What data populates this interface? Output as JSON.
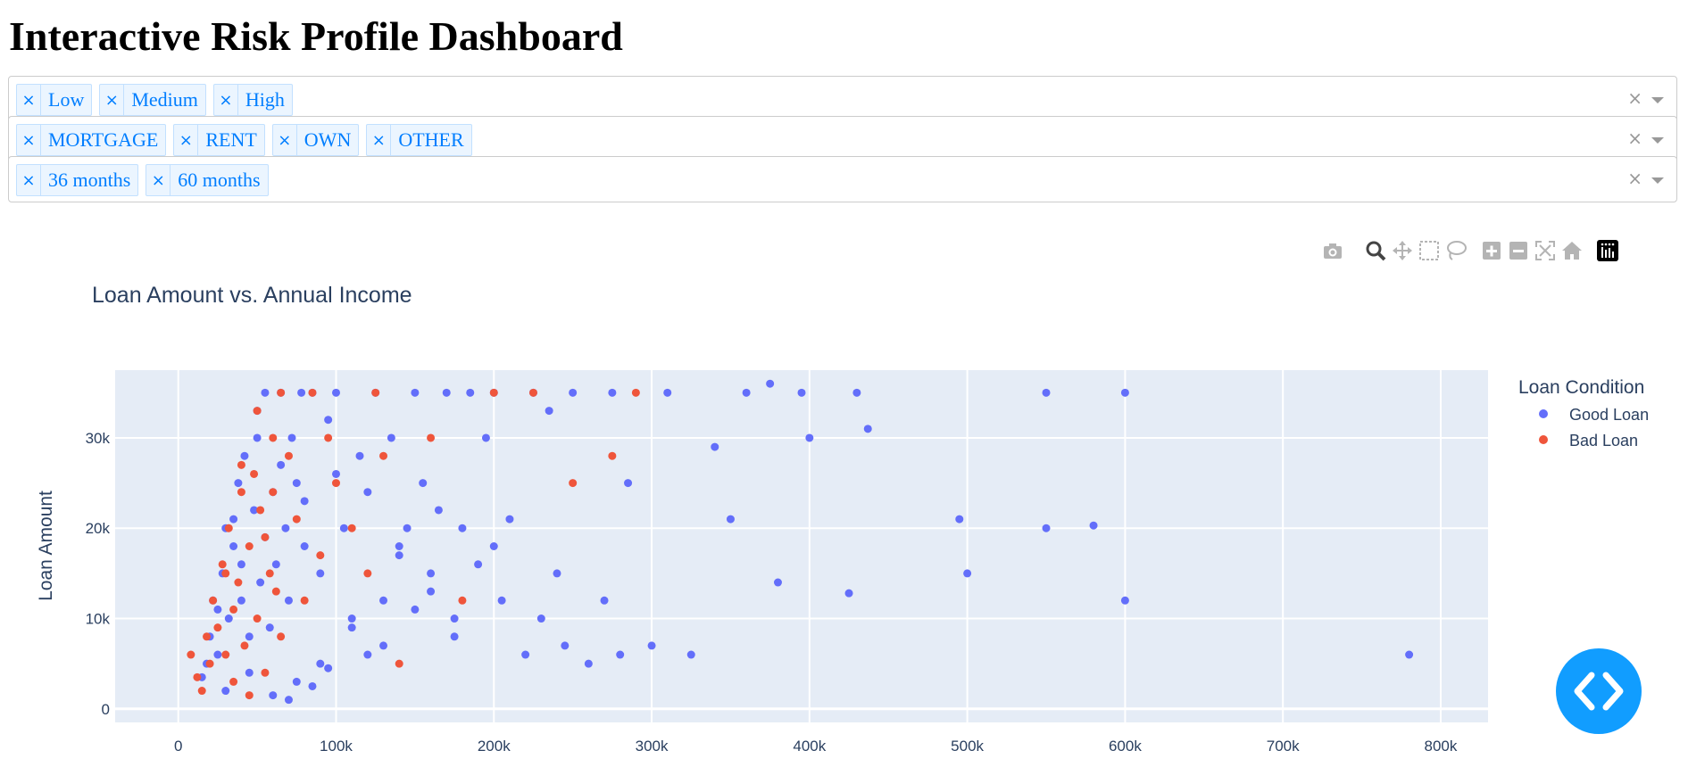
{
  "page": {
    "title": "Interactive Risk Profile Dashboard"
  },
  "filters": [
    {
      "tags": [
        "Low",
        "Medium",
        "High"
      ],
      "clear_symbol": "×"
    },
    {
      "tags": [
        "MORTGAGE",
        "RENT",
        "OWN",
        "OTHER"
      ],
      "clear_symbol": "×"
    },
    {
      "tags": [
        "36 months",
        "60 months"
      ],
      "clear_symbol": "×"
    }
  ],
  "modebar": [
    "camera-icon",
    "zoom-icon",
    "pan-icon",
    "box-select-icon",
    "lasso-select-icon",
    "zoom-in-icon",
    "zoom-out-icon",
    "autoscale-icon",
    "reset-axes-icon",
    "plotly-logo-icon"
  ],
  "colors": {
    "good": "#636efa",
    "bad": "#ef553b",
    "plot_bg": "#e5ecf6",
    "accent": "#119dff",
    "tag_text": "#007eff"
  },
  "chart_data": {
    "type": "scatter",
    "title": "Loan Amount vs. Annual Income",
    "xlabel": "",
    "ylabel": "Loan Amount",
    "xlim": [
      -40000,
      830000
    ],
    "ylim": [
      -1500,
      37500
    ],
    "xticks": [
      0,
      100000,
      200000,
      300000,
      400000,
      500000,
      600000,
      700000,
      800000
    ],
    "xtick_labels": [
      "0",
      "100k",
      "200k",
      "300k",
      "400k",
      "500k",
      "600k",
      "700k",
      "800k"
    ],
    "yticks": [
      0,
      10000,
      20000,
      30000
    ],
    "ytick_labels": [
      "0",
      "10k",
      "20k",
      "30k"
    ],
    "grid": true,
    "legend_title": "Loan Condition",
    "legend_position": "top-right",
    "series": [
      {
        "name": "Good Loan",
        "color": "#636efa",
        "x": [
          15000,
          18000,
          20000,
          22000,
          25000,
          28000,
          30000,
          32000,
          35000,
          38000,
          40000,
          42000,
          45000,
          48000,
          50000,
          52000,
          55000,
          58000,
          60000,
          62000,
          65000,
          68000,
          70000,
          72000,
          75000,
          78000,
          80000,
          85000,
          90000,
          95000,
          100000,
          105000,
          110000,
          115000,
          120000,
          125000,
          130000,
          135000,
          140000,
          145000,
          150000,
          155000,
          160000,
          165000,
          170000,
          175000,
          180000,
          185000,
          190000,
          195000,
          200000,
          205000,
          210000,
          220000,
          225000,
          230000,
          235000,
          240000,
          245000,
          250000,
          260000,
          270000,
          275000,
          280000,
          285000,
          300000,
          310000,
          325000,
          340000,
          350000,
          360000,
          375000,
          380000,
          395000,
          400000,
          425000,
          430000,
          437000,
          495000,
          500000,
          550000,
          550000,
          580000,
          600000,
          600000,
          780000,
          30000,
          45000,
          60000,
          75000,
          90000,
          110000,
          130000,
          150000,
          175000,
          200000,
          70000,
          85000,
          95000,
          120000,
          65000,
          80000,
          100000,
          140000,
          160000,
          55000,
          40000,
          35000,
          25000,
          50000
        ],
        "y": [
          3500,
          5000,
          8000,
          12000,
          6000,
          15000,
          20000,
          10000,
          18000,
          25000,
          12000,
          28000,
          8000,
          22000,
          30000,
          14000,
          35000,
          9000,
          24000,
          16000,
          35000,
          20000,
          12000,
          30000,
          25000,
          35000,
          18000,
          35000,
          15000,
          32000,
          35000,
          20000,
          10000,
          28000,
          24000,
          35000,
          12000,
          30000,
          18000,
          20000,
          35000,
          25000,
          15000,
          22000,
          35000,
          10000,
          20000,
          35000,
          16000,
          30000,
          35000,
          12000,
          21000,
          6000,
          35000,
          10000,
          33000,
          15000,
          7000,
          35000,
          5000,
          12000,
          35000,
          6000,
          25000,
          7000,
          35000,
          6000,
          29000,
          21000,
          35000,
          36000,
          14000,
          35000,
          30000,
          12800,
          35000,
          31000,
          21000,
          15000,
          35000,
          20000,
          20300,
          35000,
          12000,
          6000,
          2000,
          4000,
          1500,
          3000,
          5000,
          9000,
          7000,
          11000,
          8000,
          18000,
          1000,
          2500,
          4500,
          6000,
          27000,
          23000,
          26000,
          17000,
          13000,
          19000,
          16000,
          21000,
          11000,
          33000
        ]
      },
      {
        "name": "Bad Loan",
        "color": "#ef553b",
        "x": [
          8000,
          12000,
          15000,
          18000,
          20000,
          22000,
          25000,
          28000,
          30000,
          32000,
          35000,
          38000,
          40000,
          42000,
          45000,
          48000,
          50000,
          52000,
          55000,
          58000,
          60000,
          62000,
          65000,
          70000,
          75000,
          80000,
          85000,
          90000,
          95000,
          100000,
          110000,
          120000,
          125000,
          130000,
          140000,
          160000,
          180000,
          200000,
          225000,
          250000,
          275000,
          290000,
          35000,
          45000,
          55000,
          65000,
          40000,
          50000,
          30000,
          60000
        ],
        "y": [
          6000,
          3500,
          2000,
          8000,
          5000,
          12000,
          9000,
          16000,
          6000,
          20000,
          11000,
          14000,
          24000,
          7000,
          18000,
          26000,
          10000,
          22000,
          4000,
          15000,
          30000,
          13000,
          35000,
          28000,
          21000,
          12000,
          35000,
          17000,
          30000,
          25000,
          20000,
          15000,
          35000,
          28000,
          5000,
          30000,
          12000,
          35000,
          35000,
          25000,
          28000,
          35000,
          3000,
          1500,
          19000,
          8000,
          27000,
          33000,
          15000,
          24000
        ]
      }
    ]
  },
  "code_button": {
    "icon": "code-brackets-icon"
  }
}
